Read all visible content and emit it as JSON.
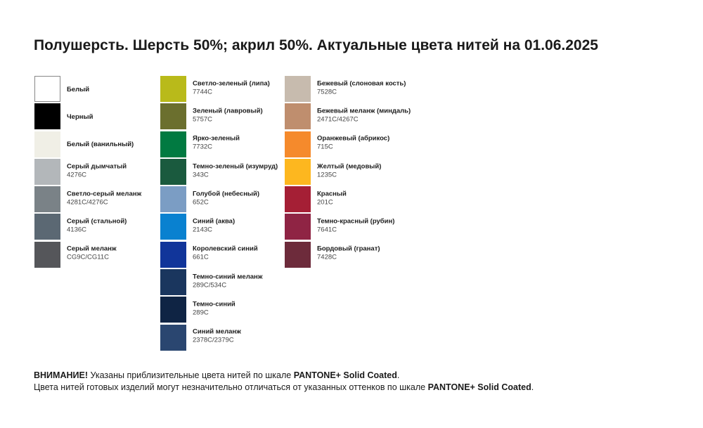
{
  "title": "Полушерсть. Шерсть 50%; акрил 50%. Актуальные цвета нитей на 01.06.2025",
  "columns": [
    [
      {
        "name": "Белый",
        "code": "",
        "color": "#ffffff"
      },
      {
        "name": "Черный",
        "code": "",
        "color": "#000000"
      },
      {
        "name": "Белый (ванильный)",
        "code": "",
        "color": "#f0efe6"
      },
      {
        "name": "Серый дымчатый",
        "code": "4276C",
        "color": "#b3b7ba"
      },
      {
        "name": "Светло-серый меланж",
        "code": "4281C/4276C",
        "color": "#7a8287"
      },
      {
        "name": "Серый (стальной)",
        "code": "4136C",
        "color": "#5b6873"
      },
      {
        "name": "Серый меланж",
        "code": "CG9C/CG11C",
        "color": "#55565a"
      }
    ],
    [
      {
        "name": "Светло-зеленый (липа)",
        "code": "7744C",
        "color": "#b9ba1a"
      },
      {
        "name": "Зеленый (лавровый)",
        "code": "5757C",
        "color": "#6b6f2e"
      },
      {
        "name": "Ярко-зеленый",
        "code": "7732C",
        "color": "#017a41"
      },
      {
        "name": "Темно-зеленый (изумруд)",
        "code": "343C",
        "color": "#1a5a3e"
      },
      {
        "name": "Голубой (небесный)",
        "code": "652C",
        "color": "#7b9dc4"
      },
      {
        "name": "Синий (аква)",
        "code": "2143C",
        "color": "#0981d0"
      },
      {
        "name": "Королевский синий",
        "code": "661C",
        "color": "#11359a"
      },
      {
        "name": "Темно-синий меланж",
        "code": "289C/534C",
        "color": "#1a365e"
      },
      {
        "name": "Темно-синий",
        "code": "289C",
        "color": "#0f2444"
      },
      {
        "name": "Синий меланж",
        "code": "2378C/2379C",
        "color": "#2a4670"
      }
    ],
    [
      {
        "name": "Бежевый (слоновая кость)",
        "code": "7528C",
        "color": "#c7bbae"
      },
      {
        "name": "Бежевый меланж (миндаль)",
        "code": "2471C/4267C",
        "color": "#bf8e6e"
      },
      {
        "name": "Оранжевый (абрикос)",
        "code": "715C",
        "color": "#f58a2c"
      },
      {
        "name": "Желтый (медовый)",
        "code": "1235C",
        "color": "#fdb71f"
      },
      {
        "name": "Красный",
        "code": "201C",
        "color": "#a51f35"
      },
      {
        "name": "Темно-красный (рубин)",
        "code": "7641C",
        "color": "#8f2444"
      },
      {
        "name": "Бордовый (гранат)",
        "code": "7428C",
        "color": "#6d2b3b"
      }
    ]
  ],
  "footer": {
    "line1_bold": "ВНИМАНИЕ!",
    "line1_text": " Указаны приблизительные цвета нитей по шкале ",
    "line1_brand": "PANTONE+ Solid Coated",
    "line1_end": ".",
    "line2_text": "Цвета нитей готовых изделий могут незначительно отличаться от указанных оттенков по шкале ",
    "line2_brand": "PANTONE+ Solid Coated",
    "line2_end": "."
  }
}
